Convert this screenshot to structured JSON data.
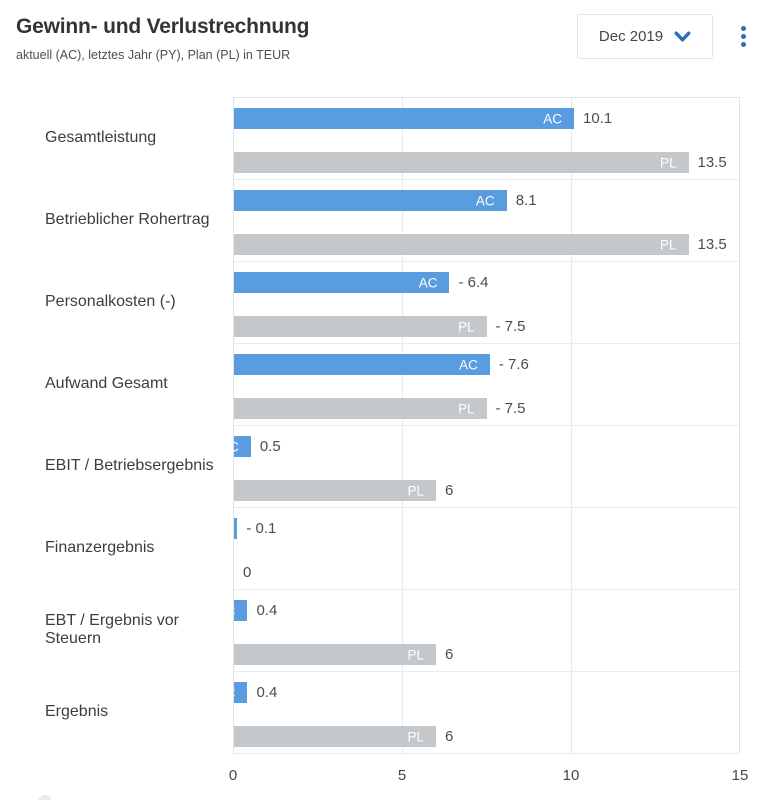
{
  "header": {
    "title": "Gewinn- und Verlustrechnung",
    "subtitle": "aktuell (AC), letztes Jahr (PY), Plan (PL) in TEUR",
    "period_selector": {
      "value": "Dec 2019",
      "icon": "chevron-down-icon"
    },
    "menu": {
      "icon": "kebab-menu-icon"
    }
  },
  "colors": {
    "ac_bar": "#5a9ce0",
    "pl_bar": "#c5c8cb",
    "accent_blue": "#2e6fb7",
    "gridline": "#e2e9f0",
    "value_text": "#4a4c4f"
  },
  "chart_data": {
    "type": "bar",
    "orientation": "horizontal",
    "title": "Gewinn- und Verlustrechnung",
    "unit": "TEUR",
    "xlim": [
      0,
      15
    ],
    "x_ticks": [
      0,
      5,
      10,
      15
    ],
    "grid": true,
    "series_tags": {
      "ac": "AC",
      "pl": "PL"
    },
    "note": "bar length encodes absolute value; sign shown in label",
    "rows": [
      {
        "category": "Gesamtleistung",
        "ac": 10.1,
        "ac_label": "10.1",
        "pl": 13.5,
        "pl_label": "13.5"
      },
      {
        "category": "Betrieblicher Rohertrag",
        "ac": 8.1,
        "ac_label": "8.1",
        "pl": 13.5,
        "pl_label": "13.5"
      },
      {
        "category": "Personalkosten (-)",
        "ac": -6.4,
        "ac_label": "- 6.4",
        "pl": -7.5,
        "pl_label": "- 7.5"
      },
      {
        "category": "Aufwand Gesamt",
        "ac": -7.6,
        "ac_label": "- 7.6",
        "pl": -7.5,
        "pl_label": "- 7.5"
      },
      {
        "category": "EBIT / Betriebsergebnis",
        "ac": 0.5,
        "ac_label": "0.5",
        "pl": 6,
        "pl_label": "6"
      },
      {
        "category": "Finanzergebnis",
        "ac": -0.1,
        "ac_label": "- 0.1",
        "pl": 0,
        "pl_label": "0"
      },
      {
        "category": "EBT / Ergebnis vor Steuern",
        "ac": 0.4,
        "ac_label": "0.4",
        "pl": 6,
        "pl_label": "6"
      },
      {
        "category": "Ergebnis",
        "ac": 0.4,
        "ac_label": "0.4",
        "pl": 6,
        "pl_label": "6"
      }
    ]
  }
}
